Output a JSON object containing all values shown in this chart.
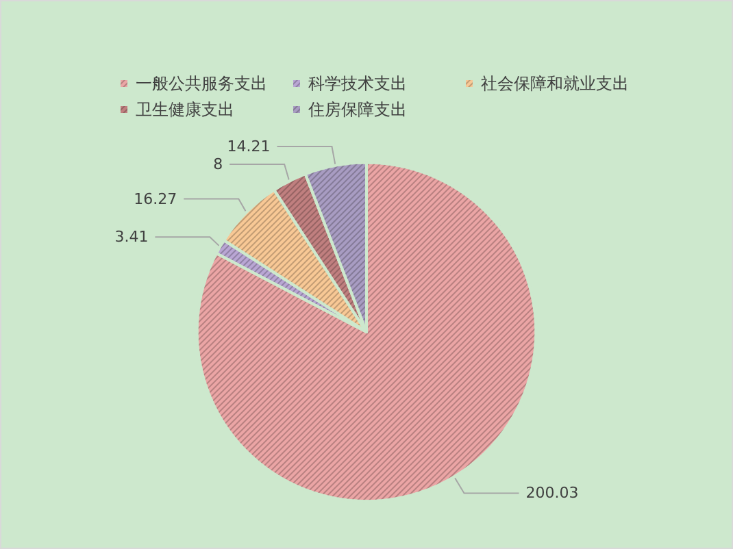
{
  "chart_data": {
    "type": "pie",
    "categories": [
      "一般公共服务支出",
      "科学技术支出",
      "社会保障和就业支出",
      "卫生健康支出",
      "住房保障支出"
    ],
    "values": [
      200.03,
      3.41,
      16.27,
      8,
      14.21
    ],
    "colors": [
      "#eba5a5",
      "#b9a6d4",
      "#f8c895",
      "#c07f7f",
      "#a89cc2"
    ],
    "data_labels": true,
    "legend": "top"
  }
}
